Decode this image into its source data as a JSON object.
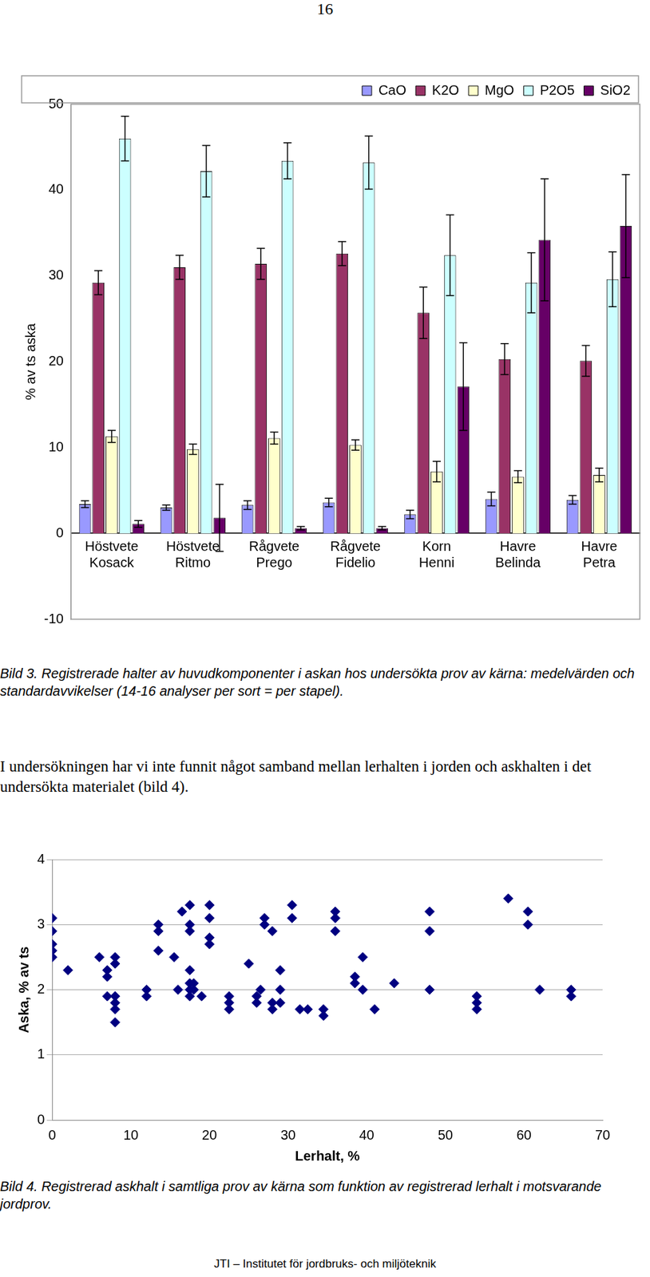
{
  "page_number": "16",
  "chart_data": [
    {
      "type": "bar",
      "categories": [
        "Höstvete Kosack",
        "Höstvete Ritmo",
        "Rågvete Prego",
        "Rågvete Fidelio",
        "Korn Henni",
        "Havre Belinda",
        "Havre Petra"
      ],
      "series": [
        {
          "name": "CaO",
          "color": "#9999ff",
          "values": [
            3.4,
            3.0,
            3.3,
            3.6,
            2.2,
            4.0,
            3.9
          ],
          "errors": [
            0.4,
            0.3,
            0.5,
            0.5,
            0.5,
            0.8,
            0.5
          ]
        },
        {
          "name": "K2O",
          "color": "#993366",
          "values": [
            29.2,
            31.0,
            31.4,
            32.6,
            25.7,
            20.3,
            20.1
          ],
          "errors": [
            1.4,
            1.4,
            1.8,
            1.4,
            3.0,
            1.8,
            1.8
          ]
        },
        {
          "name": "MgO",
          "color": "#ffffcc",
          "values": [
            11.3,
            9.8,
            11.1,
            10.3,
            7.2,
            6.6,
            6.8
          ],
          "errors": [
            0.7,
            0.6,
            0.7,
            0.6,
            1.2,
            0.7,
            0.8
          ]
        },
        {
          "name": "P2O5",
          "color": "#ccffff",
          "values": [
            46.0,
            42.2,
            43.4,
            43.2,
            32.4,
            29.2,
            29.6
          ],
          "errors": [
            2.6,
            3.0,
            2.1,
            3.1,
            4.7,
            3.5,
            3.2
          ]
        },
        {
          "name": "SiO2",
          "color": "#660066",
          "values": [
            1.1,
            1.8,
            0.6,
            0.6,
            17.1,
            34.2,
            35.8
          ],
          "errors": [
            0.4,
            3.9,
            0.2,
            0.2,
            5.1,
            7.1,
            6.0
          ]
        }
      ],
      "y_label": "% av ts aska",
      "ylim": [
        -10,
        50
      ],
      "yticks": [
        -10,
        0,
        10,
        20,
        30,
        40,
        50
      ],
      "grid": false,
      "legend": "top-right"
    },
    {
      "type": "scatter",
      "x": [
        0,
        0,
        0,
        0,
        0,
        2,
        6,
        7,
        7,
        7,
        8,
        8,
        8,
        8,
        8,
        8,
        12,
        12,
        13.5,
        13.5,
        13.5,
        15.5,
        16,
        16.5,
        17.5,
        17.5,
        17.5,
        17.5,
        17.5,
        17.5,
        17.5,
        18,
        18,
        19,
        20,
        20,
        20,
        20,
        22.5,
        22.5,
        22.5,
        25,
        26,
        26,
        26.5,
        27,
        27,
        28,
        28,
        28,
        29,
        29,
        29,
        30.5,
        30.5,
        31.5,
        32.5,
        34.5,
        34.5,
        36,
        36,
        36,
        38.5,
        38.5,
        39.5,
        39.5,
        41,
        43.5,
        48,
        48,
        48,
        54,
        54,
        54,
        58,
        60.5,
        60.5,
        62,
        66,
        66
      ],
      "values": [
        3.1,
        2.9,
        2.7,
        2.6,
        2.5,
        2.3,
        2.5,
        2.2,
        1.9,
        2.3,
        2.5,
        2.4,
        1.9,
        1.8,
        1.7,
        1.5,
        2.0,
        1.9,
        3.0,
        2.9,
        2.6,
        2.5,
        2.0,
        3.2,
        3.3,
        3.0,
        2.9,
        2.3,
        2.1,
        2.0,
        1.9,
        2.1,
        2.0,
        1.9,
        3.3,
        3.1,
        2.8,
        2.7,
        1.9,
        1.8,
        1.7,
        2.4,
        1.9,
        1.8,
        2.0,
        3.1,
        3.0,
        2.9,
        1.8,
        1.7,
        2.3,
        2.0,
        1.8,
        3.3,
        3.1,
        1.7,
        1.7,
        1.7,
        1.6,
        3.2,
        3.1,
        2.9,
        2.2,
        2.1,
        2.5,
        2.0,
        1.7,
        2.1,
        3.2,
        2.9,
        2.0,
        1.9,
        1.8,
        1.7,
        3.4,
        3.2,
        3.0,
        2.0,
        2.0,
        1.9
      ],
      "color": "#000080",
      "marker": "diamond",
      "x_label": "Lerhalt, %",
      "y_label": "Aska, % av ts",
      "xlim": [
        0,
        70
      ],
      "xticks": [
        0,
        10,
        20,
        30,
        40,
        50,
        60,
        70
      ],
      "ylim": [
        0,
        4
      ],
      "yticks": [
        0,
        1,
        2,
        3,
        4
      ],
      "grid": true
    }
  ],
  "captions": [
    "Bild 3. Registrerade halter av huvudkomponenter i askan hos undersökta prov av kärna: medelvärden och standardavvikelser (14-16 analyser per sort = per stapel).",
    "Bild 4. Registrerad askhalt i samtliga prov av kärna som funktion av registrerad lerhalt i motsvarande jordprov."
  ],
  "paragraph": "I undersökningen har vi inte funnit något samband mellan lerhalten i jorden och askhalten i det undersökta materialet (bild 4).",
  "footer": "JTI – Institutet för jordbruks- och miljöteknik"
}
